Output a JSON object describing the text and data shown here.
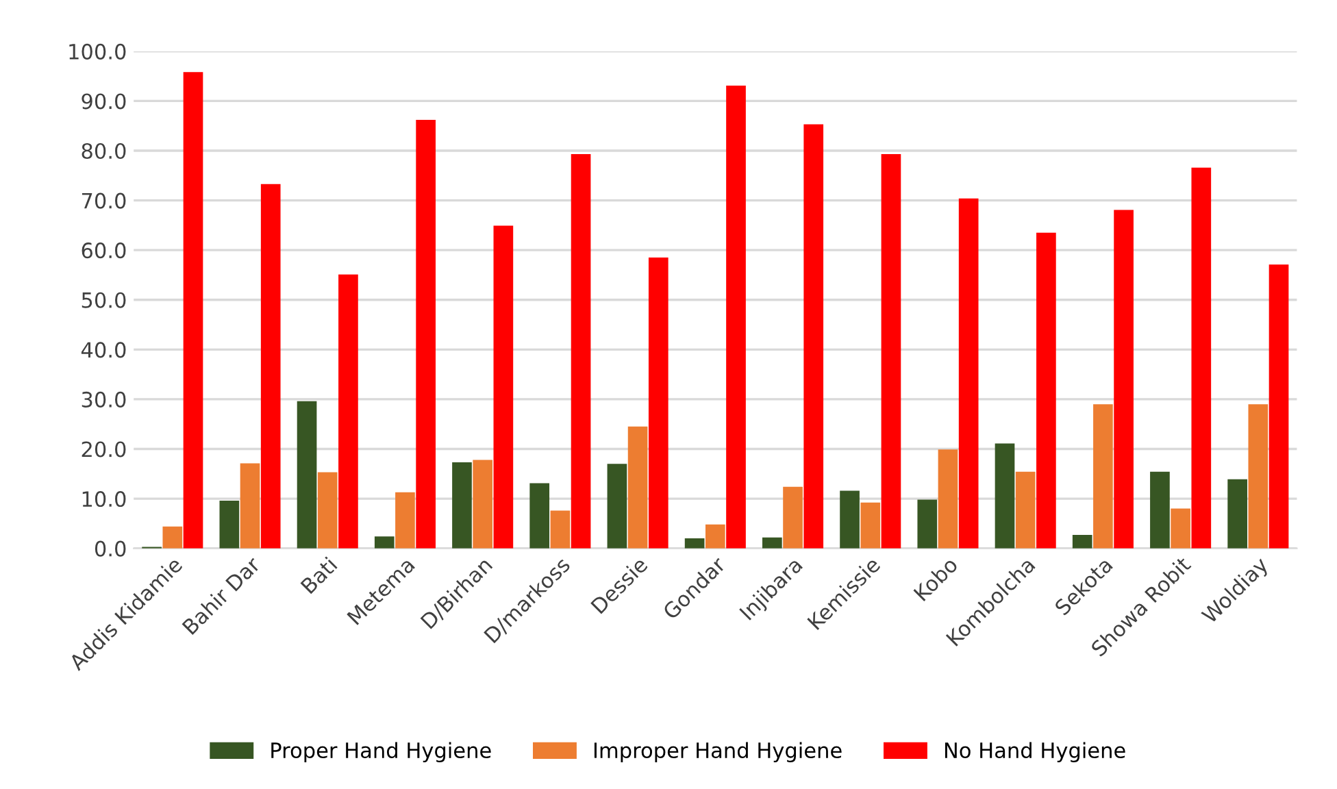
{
  "chart_data": {
    "type": "bar",
    "categories": [
      "Addis Kidamie",
      "Bahir Dar",
      "Bati",
      "Metema",
      "D/Birhan",
      "D/markoss",
      "Dessie",
      "Gondar",
      "Injibara",
      "Kemissie",
      "Kobo",
      "Kombolcha",
      "Sekota",
      "Showa Robit",
      "Woldiay"
    ],
    "series": [
      {
        "name": "Proper Hand Hygiene",
        "color": "#375623",
        "values": [
          0.3,
          9.6,
          29.6,
          2.4,
          17.3,
          13.1,
          17.0,
          2.0,
          2.2,
          11.6,
          9.8,
          21.1,
          2.7,
          15.4,
          13.9
        ]
      },
      {
        "name": "Improper Hand Hygiene",
        "color": "#ed7d31",
        "values": [
          4.4,
          17.1,
          15.3,
          11.3,
          17.8,
          7.6,
          24.5,
          4.8,
          12.4,
          9.2,
          19.9,
          15.4,
          29.0,
          8.0,
          29.0
        ]
      },
      {
        "name": "No Hand Hygiene",
        "color": "#ff0000",
        "values": [
          95.8,
          73.3,
          55.1,
          86.2,
          64.9,
          79.3,
          58.5,
          93.1,
          85.3,
          79.3,
          70.4,
          63.5,
          68.1,
          76.6,
          57.1
        ]
      }
    ],
    "ylim": [
      0,
      100
    ],
    "yticks": [
      {
        "value": 0,
        "label": "0.0"
      },
      {
        "value": 10,
        "label": "10.0"
      },
      {
        "value": 20,
        "label": "20.0"
      },
      {
        "value": 30,
        "label": "30.0"
      },
      {
        "value": 40,
        "label": "40.0"
      },
      {
        "value": 50,
        "label": "50.0"
      },
      {
        "value": 60,
        "label": "60.0"
      },
      {
        "value": 70,
        "label": "70.0"
      },
      {
        "value": 80,
        "label": "80.0"
      },
      {
        "value": 90,
        "label": "90.0"
      },
      {
        "value": 100,
        "label": "100.0"
      }
    ],
    "grid": "y",
    "legend": "bottom"
  }
}
